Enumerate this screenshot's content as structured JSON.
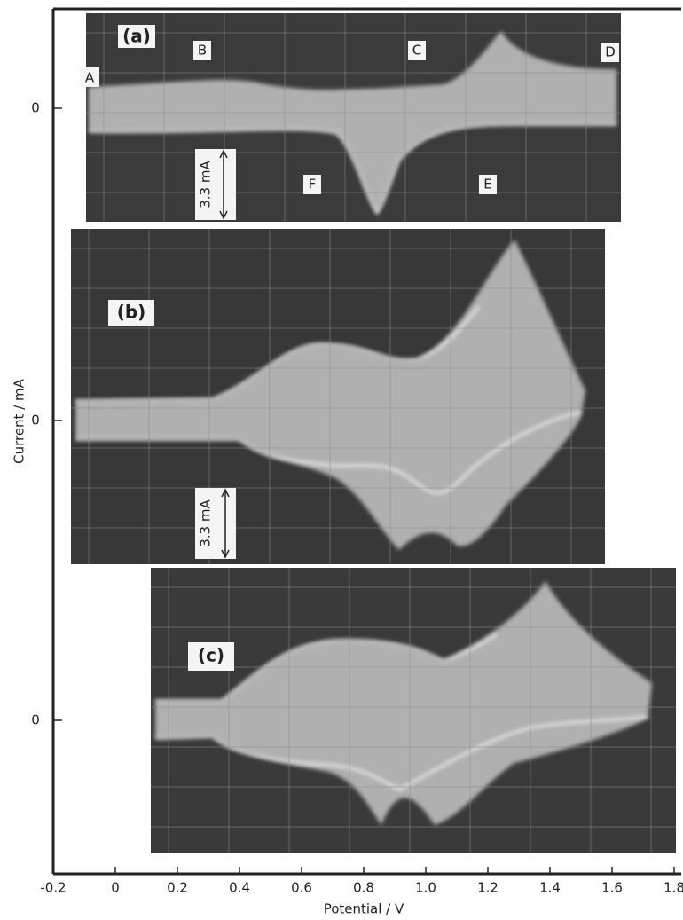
{
  "chart_data": {
    "type": "oscillogram",
    "xlabel": "Potential / V",
    "ylabel": "Current / mA",
    "xlim": [
      -0.2,
      1.8
    ],
    "xticks": [
      -0.2,
      0,
      0.2,
      0.4,
      0.6,
      0.8,
      {
        "value": 1,
        "label": "1.0"
      },
      1.2,
      1.4,
      1.6,
      1.8
    ],
    "panels": [
      {
        "label": "(a)",
        "yticks": [
          0
        ],
        "scale": "3.3 mA",
        "annotations": [
          "A",
          "B",
          "C",
          "D",
          "E",
          "F"
        ]
      },
      {
        "label": "(b)",
        "yticks": [
          0
        ],
        "scale": "3.3 mA"
      },
      {
        "label": "(c)",
        "yticks": [
          0
        ]
      }
    ]
  }
}
